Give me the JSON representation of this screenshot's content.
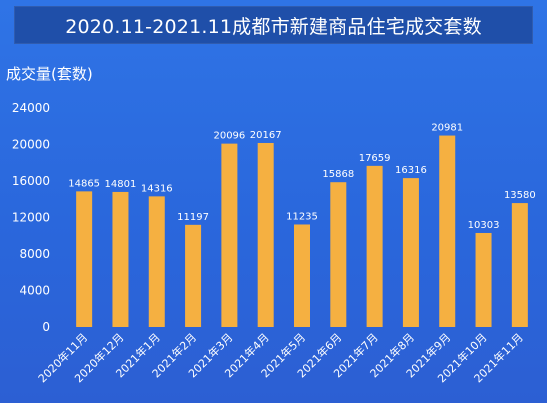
{
  "header": {
    "title": "2020.11-2021.11成都市新建商品住宅成交套数"
  },
  "colors": {
    "background": "#2a67dc",
    "title_bar": "#1f4fa9",
    "bar": "#f5b041",
    "text": "#ffffff"
  },
  "chart_data": {
    "type": "bar",
    "title": "2020.11-2021.11成都市新建商品住宅成交套数",
    "ylabel": "成交量(套数)",
    "xlabel": "",
    "ylim": [
      0,
      24000
    ],
    "yticks": [
      0,
      4000,
      8000,
      12000,
      16000,
      20000,
      24000
    ],
    "grid": false,
    "categories": [
      "2020年11月",
      "2020年12月",
      "2021年1月",
      "2021年2月",
      "2021年3月",
      "2021年4月",
      "2021年5月",
      "2021年6月",
      "2021年7月",
      "2021年8月",
      "2021年9月",
      "2021年10月",
      "2021年11月"
    ],
    "values": [
      14865,
      14801,
      14316,
      11197,
      20096,
      20167,
      11235,
      15868,
      17659,
      16316,
      20981,
      10303,
      13580
    ]
  }
}
